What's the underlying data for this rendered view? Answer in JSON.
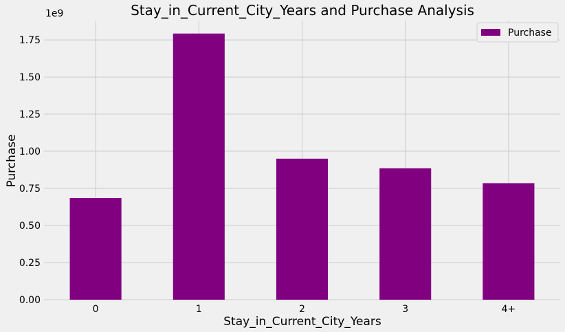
{
  "chart_data": {
    "type": "bar",
    "title": "Stay_in_Current_City_Years and Purchase Analysis",
    "xlabel": "Stay_in_Current_City_Years",
    "ylabel": "Purchase",
    "offset_label": "1e9",
    "categories": [
      "0",
      "1",
      "2",
      "3",
      "4+"
    ],
    "series": [
      {
        "name": "Purchase",
        "values": [
          0.685,
          1.793,
          0.95,
          0.885,
          0.785
        ],
        "color": "#800080"
      }
    ],
    "ylim": [
      0,
      1.88
    ],
    "yticks": [
      0.0,
      0.25,
      0.5,
      0.75,
      1.0,
      1.25,
      1.5,
      1.75
    ],
    "ytick_labels": [
      "0.00",
      "0.25",
      "0.50",
      "0.75",
      "1.00",
      "1.25",
      "1.50",
      "1.75"
    ],
    "y_scale_note": "values shown in units of 1e9",
    "grid": true,
    "legend_position": "top-right",
    "background_color": "#f0f0f0",
    "grid_color": "#cbcbcb"
  }
}
